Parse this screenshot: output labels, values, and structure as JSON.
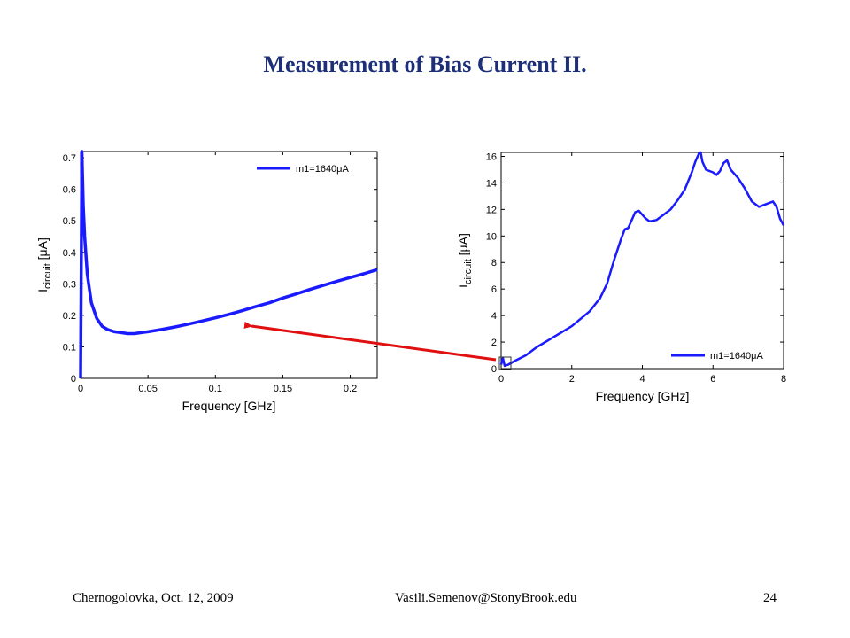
{
  "slide": {
    "title": "Measurement of Bias Current II.",
    "footer_left": "Chernogolovka, Oct. 12, 2009",
    "footer_center": "Vasili.Semenov@StonyBrook.edu",
    "page_number": "24"
  },
  "colors": {
    "title": "#1c2f78",
    "series": "#1a1aff",
    "arrow": "#e01010"
  },
  "chart_data": [
    {
      "type": "line",
      "xlabel": "Frequency [GHz]",
      "ylabel_main": "I",
      "ylabel_sub": "circuit",
      "ylabel_unit": " [μA]",
      "xlim": [
        0,
        0.22
      ],
      "ylim": [
        0,
        0.72
      ],
      "xticks": [
        0,
        0.05,
        0.1,
        0.15,
        0.2
      ],
      "xtick_labels": [
        "0",
        "0.05",
        "0.1",
        "0.15",
        "0.2"
      ],
      "yticks": [
        0,
        0.1,
        0.2,
        0.3,
        0.4,
        0.5,
        0.6,
        0.7
      ],
      "ytick_labels": [
        "0",
        "0.1",
        "0.2",
        "0.3",
        "0.4",
        "0.5",
        "0.6",
        "0.7"
      ],
      "legend_position": "top-right",
      "series": [
        {
          "name": "m1=1640μA",
          "x": [
            0,
            0.001,
            0.002,
            0.003,
            0.005,
            0.008,
            0.012,
            0.016,
            0.02,
            0.025,
            0.03,
            0.035,
            0.04,
            0.045,
            0.05,
            0.06,
            0.07,
            0.08,
            0.09,
            0.1,
            0.11,
            0.12,
            0.13,
            0.14,
            0.15,
            0.16,
            0.17,
            0.18,
            0.19,
            0.2,
            0.21,
            0.22
          ],
          "y": [
            0,
            0.72,
            0.55,
            0.45,
            0.33,
            0.24,
            0.19,
            0.165,
            0.155,
            0.148,
            0.145,
            0.142,
            0.142,
            0.145,
            0.148,
            0.155,
            0.163,
            0.172,
            0.182,
            0.192,
            0.203,
            0.215,
            0.228,
            0.24,
            0.255,
            0.268,
            0.282,
            0.295,
            0.308,
            0.32,
            0.332,
            0.345
          ]
        }
      ]
    },
    {
      "type": "line",
      "xlabel": "Frequency [GHz]",
      "ylabel_main": "I",
      "ylabel_sub": "circuit",
      "ylabel_unit": " [μA]",
      "xlim": [
        0,
        8
      ],
      "ylim": [
        0,
        16.3
      ],
      "xticks": [
        0,
        2,
        4,
        6,
        8
      ],
      "xtick_labels": [
        "0",
        "2",
        "4",
        "6",
        "8"
      ],
      "yticks": [
        0,
        2,
        4,
        6,
        8,
        10,
        12,
        14,
        16
      ],
      "ytick_labels": [
        "0",
        "2",
        "4",
        "6",
        "8",
        "10",
        "12",
        "14",
        "16"
      ],
      "legend_position": "bottom-right",
      "series": [
        {
          "name": "m1=1640μA",
          "x": [
            0,
            0.05,
            0.1,
            0.2,
            0.4,
            0.7,
            1.0,
            1.5,
            2.0,
            2.5,
            2.8,
            3.0,
            3.2,
            3.4,
            3.5,
            3.6,
            3.7,
            3.8,
            3.9,
            4.0,
            4.1,
            4.2,
            4.4,
            4.6,
            4.8,
            5.0,
            5.2,
            5.4,
            5.5,
            5.6,
            5.65,
            5.7,
            5.8,
            6.0,
            6.1,
            6.2,
            6.3,
            6.4,
            6.5,
            6.7,
            6.9,
            7.1,
            7.3,
            7.5,
            7.7,
            7.8,
            7.9,
            8.0
          ],
          "y": [
            0.3,
            0.8,
            0.2,
            0.3,
            0.6,
            1.0,
            1.6,
            2.4,
            3.2,
            4.3,
            5.3,
            6.4,
            8.2,
            9.8,
            10.5,
            10.6,
            11.2,
            11.8,
            11.9,
            11.6,
            11.3,
            11.1,
            11.2,
            11.6,
            12.0,
            12.7,
            13.5,
            14.8,
            15.6,
            16.2,
            16.3,
            15.6,
            15.0,
            14.8,
            14.6,
            14.9,
            15.5,
            15.7,
            15.0,
            14.4,
            13.6,
            12.6,
            12.2,
            12.4,
            12.6,
            12.2,
            11.3,
            10.8
          ]
        }
      ]
    }
  ]
}
